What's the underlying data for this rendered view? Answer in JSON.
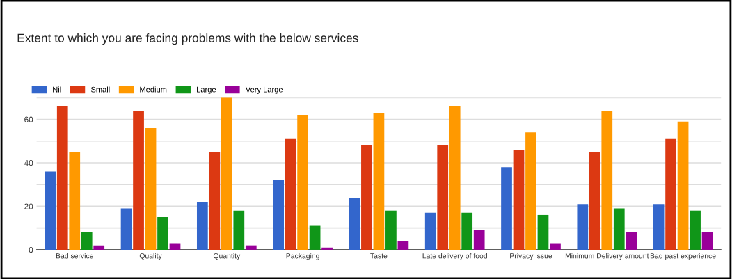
{
  "chart_data": {
    "type": "bar",
    "title": "Extent to which you are facing problems with the below services",
    "categories": [
      "Bad service",
      "Quality",
      "Quantity",
      "Packaging",
      "Taste",
      "Late delivery of food",
      "Privacy issue",
      "Minimum Delivery amount",
      "Bad past experience"
    ],
    "series": [
      {
        "name": "Nil",
        "color": "#3366cc",
        "values": [
          36,
          19,
          22,
          32,
          24,
          17,
          38,
          21,
          21
        ]
      },
      {
        "name": "Small",
        "color": "#dc3912",
        "values": [
          66,
          64,
          45,
          51,
          48,
          48,
          46,
          45,
          51
        ]
      },
      {
        "name": "Medium",
        "color": "#ff9900",
        "values": [
          45,
          56,
          70,
          62,
          63,
          66,
          54,
          64,
          59
        ]
      },
      {
        "name": "Large",
        "color": "#109618",
        "values": [
          8,
          15,
          18,
          11,
          18,
          17,
          16,
          19,
          18
        ]
      },
      {
        "name": "Very Large",
        "color": "#990099",
        "values": [
          2,
          3,
          2,
          1,
          4,
          9,
          3,
          8,
          8
        ]
      }
    ],
    "ylim": [
      0,
      70
    ],
    "yticks": [
      0,
      {
        "value": 10,
        "label": null
      },
      20,
      {
        "value": 30,
        "label": null
      },
      40,
      {
        "value": 50,
        "label": null
      },
      60,
      {
        "value": 70,
        "label": null
      }
    ],
    "grid": "y",
    "legend": "top left"
  }
}
